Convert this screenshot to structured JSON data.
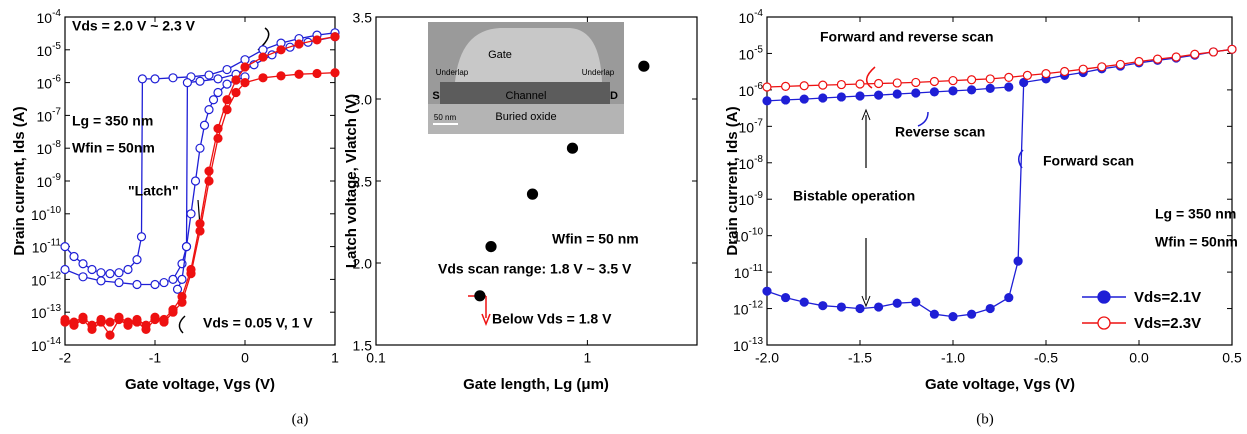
{
  "chart_data": [
    {
      "type": "line",
      "x_label": "Gate voltage, Vgs (V)",
      "y_label": "Drain current, Ids (A)",
      "ylog": true,
      "xlim": [
        -2,
        1
      ],
      "xticks": [
        -2,
        -1,
        0,
        1
      ],
      "ylim": [
        1e-14,
        0.0001
      ],
      "yticks": [
        {
          "value": 1e-14,
          "label": "10-14"
        },
        {
          "value": 1e-13,
          "label": "10-13"
        },
        {
          "value": 1e-12,
          "label": "10-12"
        },
        {
          "value": 1e-11,
          "label": "10-11"
        },
        {
          "value": 1e-10,
          "label": "10-10"
        },
        {
          "value": 1e-09,
          "label": "10-9"
        },
        {
          "value": 1e-08,
          "label": "10-8"
        },
        {
          "value": 1e-07,
          "label": "10-7"
        },
        {
          "value": 1e-06,
          "label": "10-6"
        },
        {
          "value": 1e-05,
          "label": "10-5"
        },
        {
          "value": 0.0001,
          "label": "10-4"
        }
      ],
      "series": [
        {
          "color": "#1f1fd6",
          "marker": "open",
          "x": [
            -2,
            -1.9,
            -1.8,
            -1.7,
            -1.6,
            -1.5,
            -1.4,
            -1.3,
            -1.2,
            -1.15,
            -1.14,
            -1,
            -0.8,
            -0.6,
            -0.4,
            -0.2,
            0,
            0.2,
            0.4,
            0.6,
            0.8,
            1
          ],
          "values": [
            1e-11,
            5e-12,
            3e-12,
            2e-12,
            1.6e-12,
            1.5e-12,
            1.6e-12,
            2e-12,
            4e-12,
            2e-11,
            1.3e-06,
            1.3e-06,
            1.4e-06,
            1.5e-06,
            1.7e-06,
            2.5e-06,
            5e-06,
            1e-05,
            1.6e-05,
            2.2e-05,
            2.8e-05,
            3.3e-05
          ]
        },
        {
          "color": "#1f1fd6",
          "marker": "open",
          "x": [
            -2,
            -1.8,
            -1.6,
            -1.4,
            -1.2,
            -1,
            -0.9,
            -0.8,
            -0.7,
            -0.65,
            -0.64,
            -0.5,
            -0.3,
            -0.1,
            0.1,
            0.3,
            0.5,
            0.7,
            1
          ],
          "values": [
            2e-12,
            1.2e-12,
            9e-13,
            8e-13,
            7e-13,
            7e-13,
            8e-13,
            1e-12,
            3e-12,
            1e-11,
            1e-06,
            1.1e-06,
            1.3e-06,
            1.8e-06,
            3.5e-06,
            7e-06,
            1.2e-05,
            1.7e-05,
            2.5e-05
          ]
        },
        {
          "color": "#1f1fd6",
          "marker": "open",
          "x": [
            -0.75,
            -0.7,
            -0.65,
            -0.6,
            -0.55,
            -0.5,
            -0.45,
            -0.4,
            -0.35,
            -0.3,
            -0.2,
            -0.1,
            0
          ],
          "values": [
            5e-13,
            1e-12,
            1e-11,
            1e-10,
            1e-09,
            1e-08,
            5e-08,
            1.5e-07,
            3e-07,
            5e-07,
            9e-07,
            1.2e-06,
            1.5e-06
          ]
        },
        {
          "color": "#ee1111",
          "marker": "filled",
          "x": [
            -2,
            -1.9,
            -1.8,
            -1.7,
            -1.6,
            -1.5,
            -1.4,
            -1.3,
            -1.2,
            -1.1,
            -1,
            -0.9,
            -0.8,
            -0.7,
            -0.6,
            -0.5,
            -0.4,
            -0.3,
            -0.2,
            -0.1,
            0,
            0.2,
            0.4,
            0.6,
            0.8,
            1
          ],
          "values": [
            5e-14,
            4e-14,
            6e-14,
            3e-14,
            5e-14,
            2e-14,
            6e-14,
            4e-14,
            5e-14,
            3e-14,
            6e-14,
            5e-14,
            1e-13,
            2e-13,
            1.5e-12,
            3e-11,
            1e-09,
            2e-08,
            1.5e-07,
            5e-07,
            1e-06,
            1.4e-06,
            1.6e-06,
            1.8e-06,
            1.9e-06,
            2e-06
          ]
        },
        {
          "color": "#ee1111",
          "marker": "filled",
          "x": [
            -2,
            -1.9,
            -1.8,
            -1.7,
            -1.6,
            -1.5,
            -1.4,
            -1.3,
            -1.2,
            -1.1,
            -1,
            -0.9,
            -0.8,
            -0.7,
            -0.6,
            -0.5,
            -0.4,
            -0.3,
            -0.2,
            -0.1,
            0,
            0.2,
            0.4,
            0.6,
            0.8,
            1
          ],
          "values": [
            6e-14,
            5e-14,
            7e-14,
            4e-14,
            6e-14,
            5e-14,
            7e-14,
            5e-14,
            6e-14,
            4e-14,
            7e-14,
            6e-14,
            1.2e-13,
            3e-13,
            2e-12,
            5e-11,
            2e-09,
            4e-08,
            3e-07,
            1.2e-06,
            3e-06,
            6e-06,
            1e-05,
            1.5e-05,
            2e-05,
            2.5e-05
          ]
        }
      ],
      "annotations": [
        {
          "text": "Vds = 2.0 V ~ 2.3 V",
          "color": "#ffffff"
        },
        {
          "text": "Lg = 350 nm",
          "color": "#000000"
        },
        {
          "text": "Wfin = 50nm",
          "color": "#000000"
        },
        {
          "text": "\"Latch\"",
          "color": "#000000"
        },
        {
          "text": "Vds = 0.05 V, 1 V",
          "color": "#000000"
        }
      ]
    },
    {
      "type": "scatter",
      "x_label": "Gate length, Lg (μm)",
      "y_label": "Latch voltage, Vlatch (V)",
      "xlog": true,
      "xlim": [
        0.1,
        3.3
      ],
      "xticks": [
        0.1,
        1
      ],
      "ylim": [
        1.5,
        3.5
      ],
      "yticks": [
        1.5,
        {
          "value": 2,
          "label": "2.0"
        },
        2.5,
        {
          "value": 3,
          "label": "3.0"
        },
        3.5
      ],
      "series": [
        {
          "color": "#000000",
          "marker": "filled",
          "x": [
            0.31,
            0.35,
            0.55,
            0.85,
            1.85
          ],
          "values": [
            1.8,
            2.1,
            2.42,
            2.7,
            3.2
          ]
        }
      ],
      "annotations": [
        {
          "text": "Wfin = 50 nm",
          "color": "#000000"
        },
        {
          "text": "Vds scan range: 1.8 V ~ 3.5 V",
          "color": "#1f1fd6"
        },
        {
          "text": "Below Vds = 1.8 V",
          "color": "#ee1111"
        }
      ],
      "inset": {
        "labels": [
          "Gate",
          "Underlap",
          "Underlap",
          "S",
          "Channel",
          "D",
          "Buried oxide",
          "50 nm"
        ]
      }
    },
    {
      "type": "line",
      "x_label": "Gate voltage, Vgs (V)",
      "y_label": "Drain current, Ids (A)",
      "ylog": true,
      "xlim": [
        -2,
        0.5
      ],
      "xticks": [
        {
          "value": -2,
          "label": "-2.0"
        },
        -1.5,
        {
          "value": -1,
          "label": "-1.0"
        },
        -0.5,
        {
          "value": 0,
          "label": "0.0"
        },
        0.5
      ],
      "ylim": [
        1e-13,
        0.0001
      ],
      "yticks": [
        {
          "value": 1e-13,
          "label": "10-13"
        },
        {
          "value": 1e-12,
          "label": "10-12"
        },
        {
          "value": 1e-11,
          "label": "10-11"
        },
        {
          "value": 1e-10,
          "label": "10-10"
        },
        {
          "value": 1e-09,
          "label": "10-9"
        },
        {
          "value": 1e-08,
          "label": "10-8"
        },
        {
          "value": 1e-07,
          "label": "10-7"
        },
        {
          "value": 1e-06,
          "label": "10-6"
        },
        {
          "value": 1e-05,
          "label": "10-5"
        },
        {
          "value": 0.0001,
          "label": "10-4"
        }
      ],
      "legend": "lower right",
      "series": [
        {
          "name": "Vds=2.1V",
          "color": "#1f1fd6",
          "marker": "filled",
          "x": [
            -2,
            -1.9,
            -1.8,
            -1.7,
            -1.6,
            -1.5,
            -1.4,
            -1.3,
            -1.2,
            -1.1,
            -1.0,
            -0.9,
            -0.8,
            -0.7,
            -0.65,
            -0.62,
            -0.5,
            -0.4,
            -0.3,
            -0.2,
            -0.1,
            0,
            0.1,
            0.2,
            0.3,
            0.4,
            0.5
          ],
          "values": [
            3e-12,
            2e-12,
            1.5e-12,
            1.2e-12,
            1.1e-12,
            1e-12,
            1.1e-12,
            1.4e-12,
            1.5e-12,
            7e-13,
            6e-13,
            7e-13,
            1e-12,
            2e-12,
            2e-11,
            1.6e-06,
            2e-06,
            2.5e-06,
            3e-06,
            3.8e-06,
            4.5e-06,
            5.5e-06,
            6.5e-06,
            7.5e-06,
            9e-06,
            1.1e-05,
            1.3e-05
          ],
          "reverse": {
            "x": [
              -2,
              -1.9,
              -1.8,
              -1.7,
              -1.6,
              -1.5,
              -1.4,
              -1.3,
              -1.2,
              -1.1,
              -1,
              -0.9,
              -0.8,
              -0.7
            ],
            "values": [
              5e-07,
              5.3e-07,
              5.6e-07,
              6e-07,
              6.4e-07,
              6.8e-07,
              7.2e-07,
              7.7e-07,
              8.2e-07,
              8.8e-07,
              9.4e-07,
              1e-06,
              1.1e-06,
              1.2e-06
            ]
          }
        },
        {
          "name": "Vds=2.3V",
          "color": "#ee1111",
          "marker": "open",
          "x": [
            -2,
            -1.9,
            -1.8,
            -1.7,
            -1.6,
            -1.5,
            -1.4,
            -1.3,
            -1.2,
            -1.1,
            -1,
            -0.9,
            -0.8,
            -0.7,
            -0.6,
            -0.5,
            -0.4,
            -0.3,
            -0.2,
            -0.1,
            0,
            0.1,
            0.2,
            0.3,
            0.4,
            0.5
          ],
          "values": [
            1.2e-06,
            1.25e-06,
            1.3e-06,
            1.35e-06,
            1.4e-06,
            1.45e-06,
            1.5e-06,
            1.55e-06,
            1.6e-06,
            1.7e-06,
            1.8e-06,
            1.9e-06,
            2e-06,
            2.2e-06,
            2.5e-06,
            2.8e-06,
            3.2e-06,
            3.7e-06,
            4.3e-06,
            5e-06,
            6e-06,
            7e-06,
            8e-06,
            9.5e-06,
            1.1e-05,
            1.3e-05
          ]
        }
      ],
      "annotations": [
        {
          "text": "Forward and reverse scan",
          "color": "#ee1111"
        },
        {
          "text": "Reverse scan",
          "color": "#1f1fd6"
        },
        {
          "text": "Forward scan",
          "color": "#1f1fd6"
        },
        {
          "text": "Bistable operation",
          "color": "#000000"
        },
        {
          "text": "Lg = 350 nm",
          "color": "#000000"
        },
        {
          "text": "Wfin = 50nm",
          "color": "#000000"
        }
      ]
    }
  ],
  "captions": [
    "(a)",
    "(b)"
  ]
}
